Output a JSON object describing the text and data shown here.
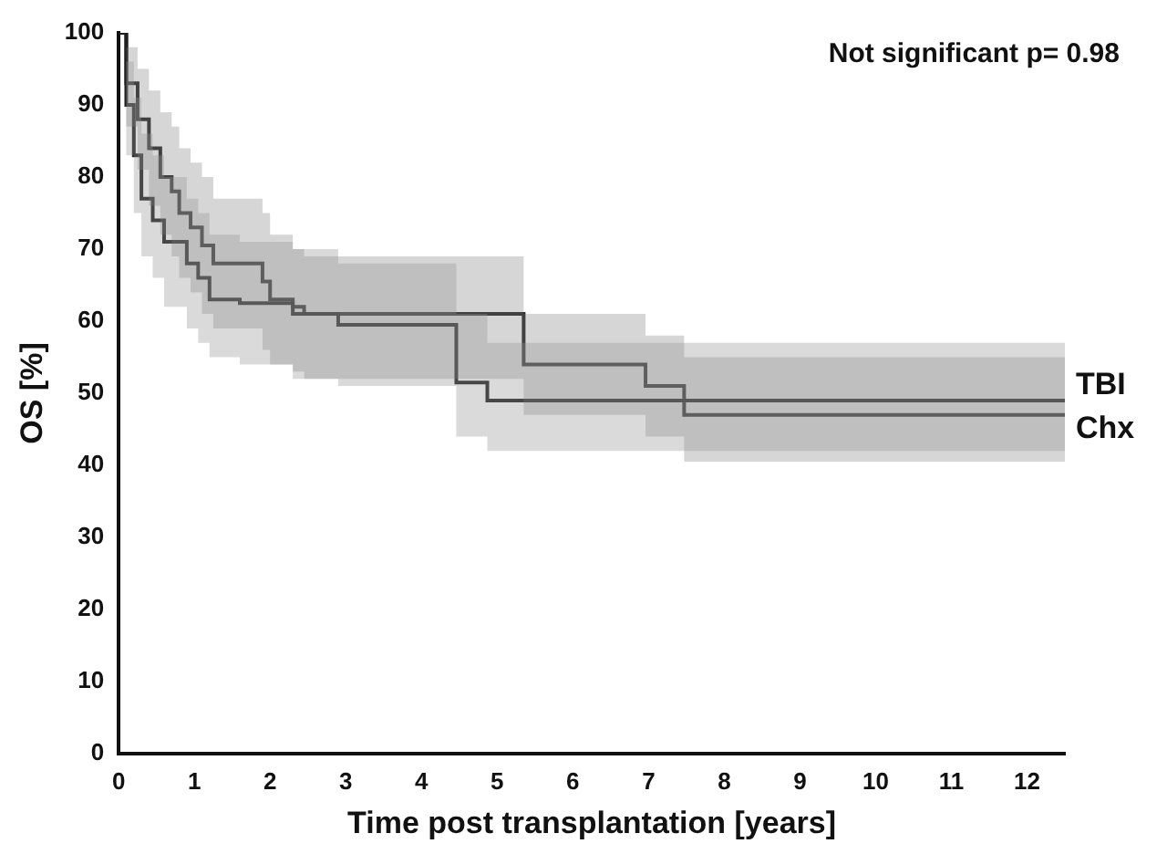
{
  "chart_data": {
    "type": "step",
    "xlabel": "Time post transplantation [years]",
    "ylabel": "OS [%]",
    "annotations": [
      "Not significant p= 0.98"
    ],
    "xlim": [
      0,
      12.5
    ],
    "xticks": [
      0,
      1,
      2,
      3,
      4,
      5,
      6,
      7,
      8,
      9,
      10,
      11,
      12
    ],
    "ylim": [
      0,
      100
    ],
    "yticks": [
      0,
      10,
      20,
      30,
      40,
      50,
      60,
      70,
      80,
      90,
      100
    ],
    "grid": false,
    "legend": false,
    "series": [
      {
        "name": "TBI",
        "color": "#1e1e1e",
        "x": [
          0,
          0.1,
          0.2,
          0.3,
          0.45,
          0.6,
          0.9,
          1.05,
          1.2,
          1.6,
          2.3,
          2.9,
          4.46,
          4.87,
          12.5
        ],
        "values": [
          100,
          90,
          83,
          77,
          74,
          71,
          68,
          66,
          63,
          62.5,
          61,
          59.5,
          51.5,
          49,
          49
        ],
        "upper": [
          100,
          96,
          91,
          86,
          83,
          80,
          77,
          75,
          72,
          71,
          70,
          68,
          61,
          57,
          57
        ],
        "lower": [
          100,
          83,
          75,
          69,
          66,
          62,
          59,
          57,
          55,
          54,
          52,
          51,
          44,
          42,
          42
        ]
      },
      {
        "name": "Chx",
        "color": "#2a2a2a",
        "x": [
          0,
          0.1,
          0.25,
          0.4,
          0.55,
          0.7,
          0.8,
          0.95,
          1.1,
          1.25,
          1.9,
          2.0,
          2.3,
          2.45,
          5.35,
          6.96,
          7.47,
          12.5
        ],
        "values": [
          100,
          93,
          88,
          84,
          80,
          78,
          75,
          73,
          70.5,
          68,
          65.5,
          63,
          62,
          61,
          54,
          51,
          47,
          47
        ],
        "upper": [
          100,
          98,
          95,
          92,
          89,
          87,
          84,
          82,
          80,
          77,
          75,
          72,
          70,
          69,
          61,
          58,
          55,
          55
        ],
        "lower": [
          100,
          87,
          81,
          76,
          72,
          69,
          66,
          64,
          61,
          59,
          56,
          54,
          53,
          52,
          47,
          44,
          40.5,
          40.5
        ]
      }
    ]
  }
}
